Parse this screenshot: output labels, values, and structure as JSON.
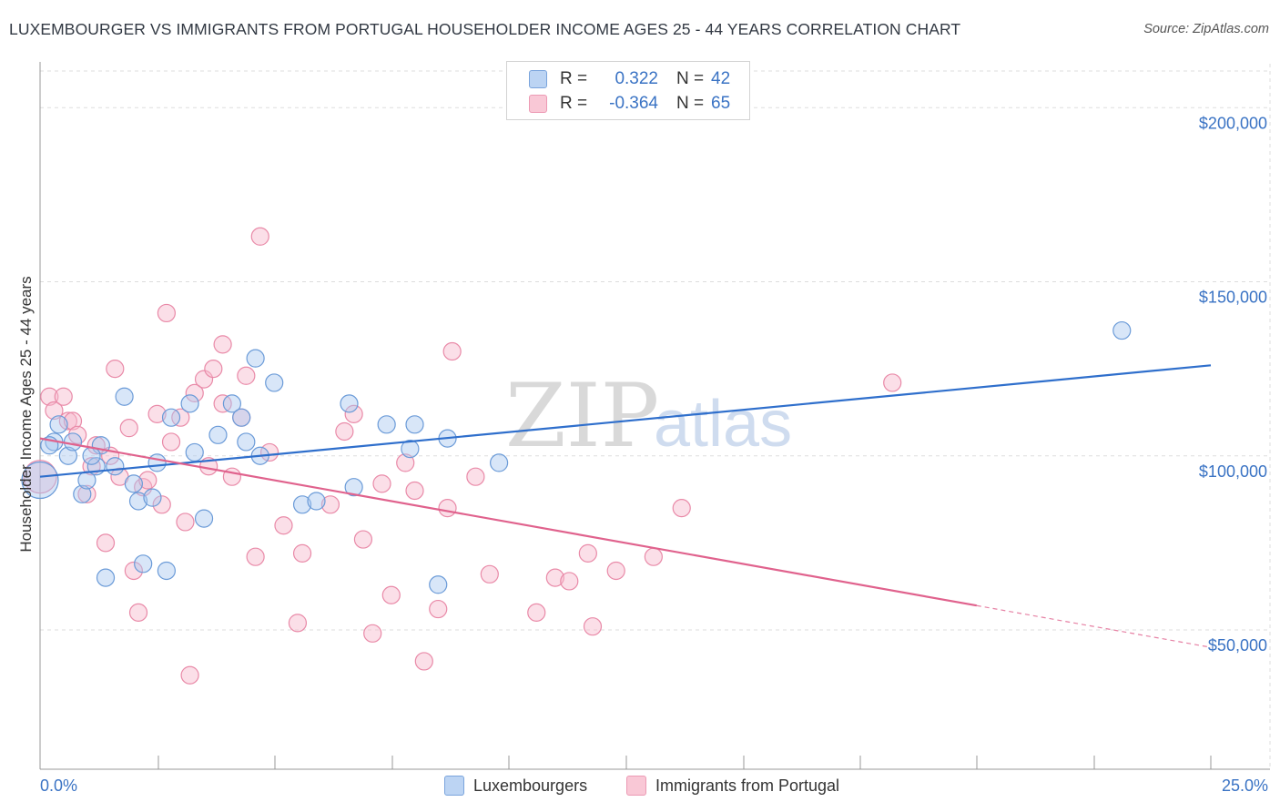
{
  "header": {
    "title": "LUXEMBOURGER VS IMMIGRANTS FROM PORTUGAL HOUSEHOLDER INCOME AGES 25 - 44 YEARS CORRELATION CHART",
    "source": "Source: ZipAtlas.com"
  },
  "watermark": {
    "zip": "ZIP",
    "atlas": "atlas"
  },
  "colors": {
    "blue_fill": "#a9c8ef",
    "blue_stroke": "#6b9bd8",
    "blue_line": "#2f6fcc",
    "pink_fill": "#f6b9cb",
    "pink_stroke": "#e98aa8",
    "pink_line": "#e0628d",
    "tick_text": "#3a73c4",
    "grid": "#dddddd"
  },
  "legend": {
    "rows": [
      {
        "r_label": "R =",
        "r_value": "0.322",
        "n_label": "N =",
        "n_value": "42"
      },
      {
        "r_label": "R =",
        "r_value": "-0.364",
        "n_label": "N =",
        "n_value": "65"
      }
    ],
    "bottom": [
      "Luxembourgers",
      "Immigrants from Portugal"
    ]
  },
  "chart_data": {
    "type": "scatter",
    "title": "LUXEMBOURGER VS IMMIGRANTS FROM PORTUGAL HOUSEHOLDER INCOME AGES 25 - 44 YEARS CORRELATION CHART",
    "xlabel": "",
    "ylabel": "Householder Income Ages 25 - 44 years",
    "xlim": [
      0,
      25
    ],
    "ylim": [
      0,
      210000
    ],
    "x_tick_labels": [
      "0.0%",
      "25.0%"
    ],
    "y_ticks": [
      50000,
      100000,
      150000,
      200000
    ],
    "y_tick_labels": [
      "$50,000",
      "$100,000",
      "$150,000",
      "$200,000"
    ],
    "grid": "horizontal dashed",
    "legend_position": "top-center",
    "series": [
      {
        "name": "Luxembourgers",
        "r": 0.322,
        "n": 42,
        "trend": {
          "x": [
            0,
            25
          ],
          "y": [
            94000,
            126000
          ]
        },
        "points": [
          [
            0.0,
            93000
          ],
          [
            0.3,
            104000
          ],
          [
            0.4,
            109000
          ],
          [
            0.6,
            100000
          ],
          [
            0.7,
            104000
          ],
          [
            0.9,
            89000
          ],
          [
            1.0,
            93000
          ],
          [
            1.2,
            97000
          ],
          [
            1.3,
            103000
          ],
          [
            1.4,
            65000
          ],
          [
            1.6,
            97000
          ],
          [
            1.8,
            117000
          ],
          [
            2.0,
            92000
          ],
          [
            2.1,
            87000
          ],
          [
            2.2,
            69000
          ],
          [
            2.4,
            88000
          ],
          [
            2.5,
            98000
          ],
          [
            2.7,
            67000
          ],
          [
            2.8,
            111000
          ],
          [
            3.2,
            115000
          ],
          [
            3.3,
            101000
          ],
          [
            3.5,
            82000
          ],
          [
            3.8,
            106000
          ],
          [
            4.1,
            115000
          ],
          [
            4.3,
            111000
          ],
          [
            4.4,
            104000
          ],
          [
            4.7,
            100000
          ],
          [
            4.6,
            128000
          ],
          [
            5.0,
            121000
          ],
          [
            5.6,
            86000
          ],
          [
            5.9,
            87000
          ],
          [
            6.6,
            115000
          ],
          [
            6.7,
            91000
          ],
          [
            7.4,
            109000
          ],
          [
            7.9,
            102000
          ],
          [
            8.0,
            109000
          ],
          [
            8.5,
            63000
          ],
          [
            8.7,
            105000
          ],
          [
            9.8,
            98000
          ],
          [
            23.1,
            136000
          ],
          [
            0.2,
            103000
          ],
          [
            1.1,
            100000
          ]
        ]
      },
      {
        "name": "Immigrants from Portugal",
        "r": -0.364,
        "n": 65,
        "trend": {
          "x": [
            0,
            20
          ],
          "y": [
            105000,
            57000
          ]
        },
        "trend_dashed": {
          "x": [
            20,
            25
          ],
          "y": [
            57000,
            45000
          ]
        },
        "points": [
          [
            0.0,
            94000
          ],
          [
            0.2,
            117000
          ],
          [
            0.3,
            113000
          ],
          [
            0.5,
            117000
          ],
          [
            0.6,
            110000
          ],
          [
            0.7,
            110000
          ],
          [
            0.8,
            106000
          ],
          [
            1.0,
            89000
          ],
          [
            1.1,
            97000
          ],
          [
            1.2,
            103000
          ],
          [
            1.4,
            75000
          ],
          [
            1.5,
            100000
          ],
          [
            1.6,
            125000
          ],
          [
            1.7,
            94000
          ],
          [
            1.9,
            108000
          ],
          [
            2.0,
            67000
          ],
          [
            2.1,
            55000
          ],
          [
            2.2,
            91000
          ],
          [
            2.3,
            93000
          ],
          [
            2.5,
            112000
          ],
          [
            2.6,
            86000
          ],
          [
            2.7,
            141000
          ],
          [
            2.8,
            104000
          ],
          [
            3.0,
            111000
          ],
          [
            3.1,
            81000
          ],
          [
            3.2,
            37000
          ],
          [
            3.3,
            118000
          ],
          [
            3.5,
            122000
          ],
          [
            3.6,
            97000
          ],
          [
            3.7,
            125000
          ],
          [
            3.9,
            115000
          ],
          [
            3.9,
            132000
          ],
          [
            4.1,
            94000
          ],
          [
            4.3,
            111000
          ],
          [
            4.4,
            123000
          ],
          [
            4.6,
            71000
          ],
          [
            4.7,
            163000
          ],
          [
            4.9,
            101000
          ],
          [
            5.2,
            80000
          ],
          [
            5.5,
            52000
          ],
          [
            5.6,
            72000
          ],
          [
            6.2,
            86000
          ],
          [
            6.5,
            107000
          ],
          [
            6.7,
            112000
          ],
          [
            6.9,
            76000
          ],
          [
            7.1,
            49000
          ],
          [
            7.3,
            92000
          ],
          [
            7.5,
            60000
          ],
          [
            7.8,
            98000
          ],
          [
            8.0,
            90000
          ],
          [
            8.2,
            41000
          ],
          [
            8.5,
            56000
          ],
          [
            8.7,
            85000
          ],
          [
            8.8,
            130000
          ],
          [
            9.3,
            94000
          ],
          [
            9.6,
            66000
          ],
          [
            10.6,
            55000
          ],
          [
            11.0,
            65000
          ],
          [
            11.3,
            64000
          ],
          [
            11.7,
            72000
          ],
          [
            11.8,
            51000
          ],
          [
            12.3,
            67000
          ],
          [
            13.1,
            71000
          ],
          [
            13.7,
            85000
          ],
          [
            18.2,
            121000
          ]
        ]
      }
    ]
  }
}
